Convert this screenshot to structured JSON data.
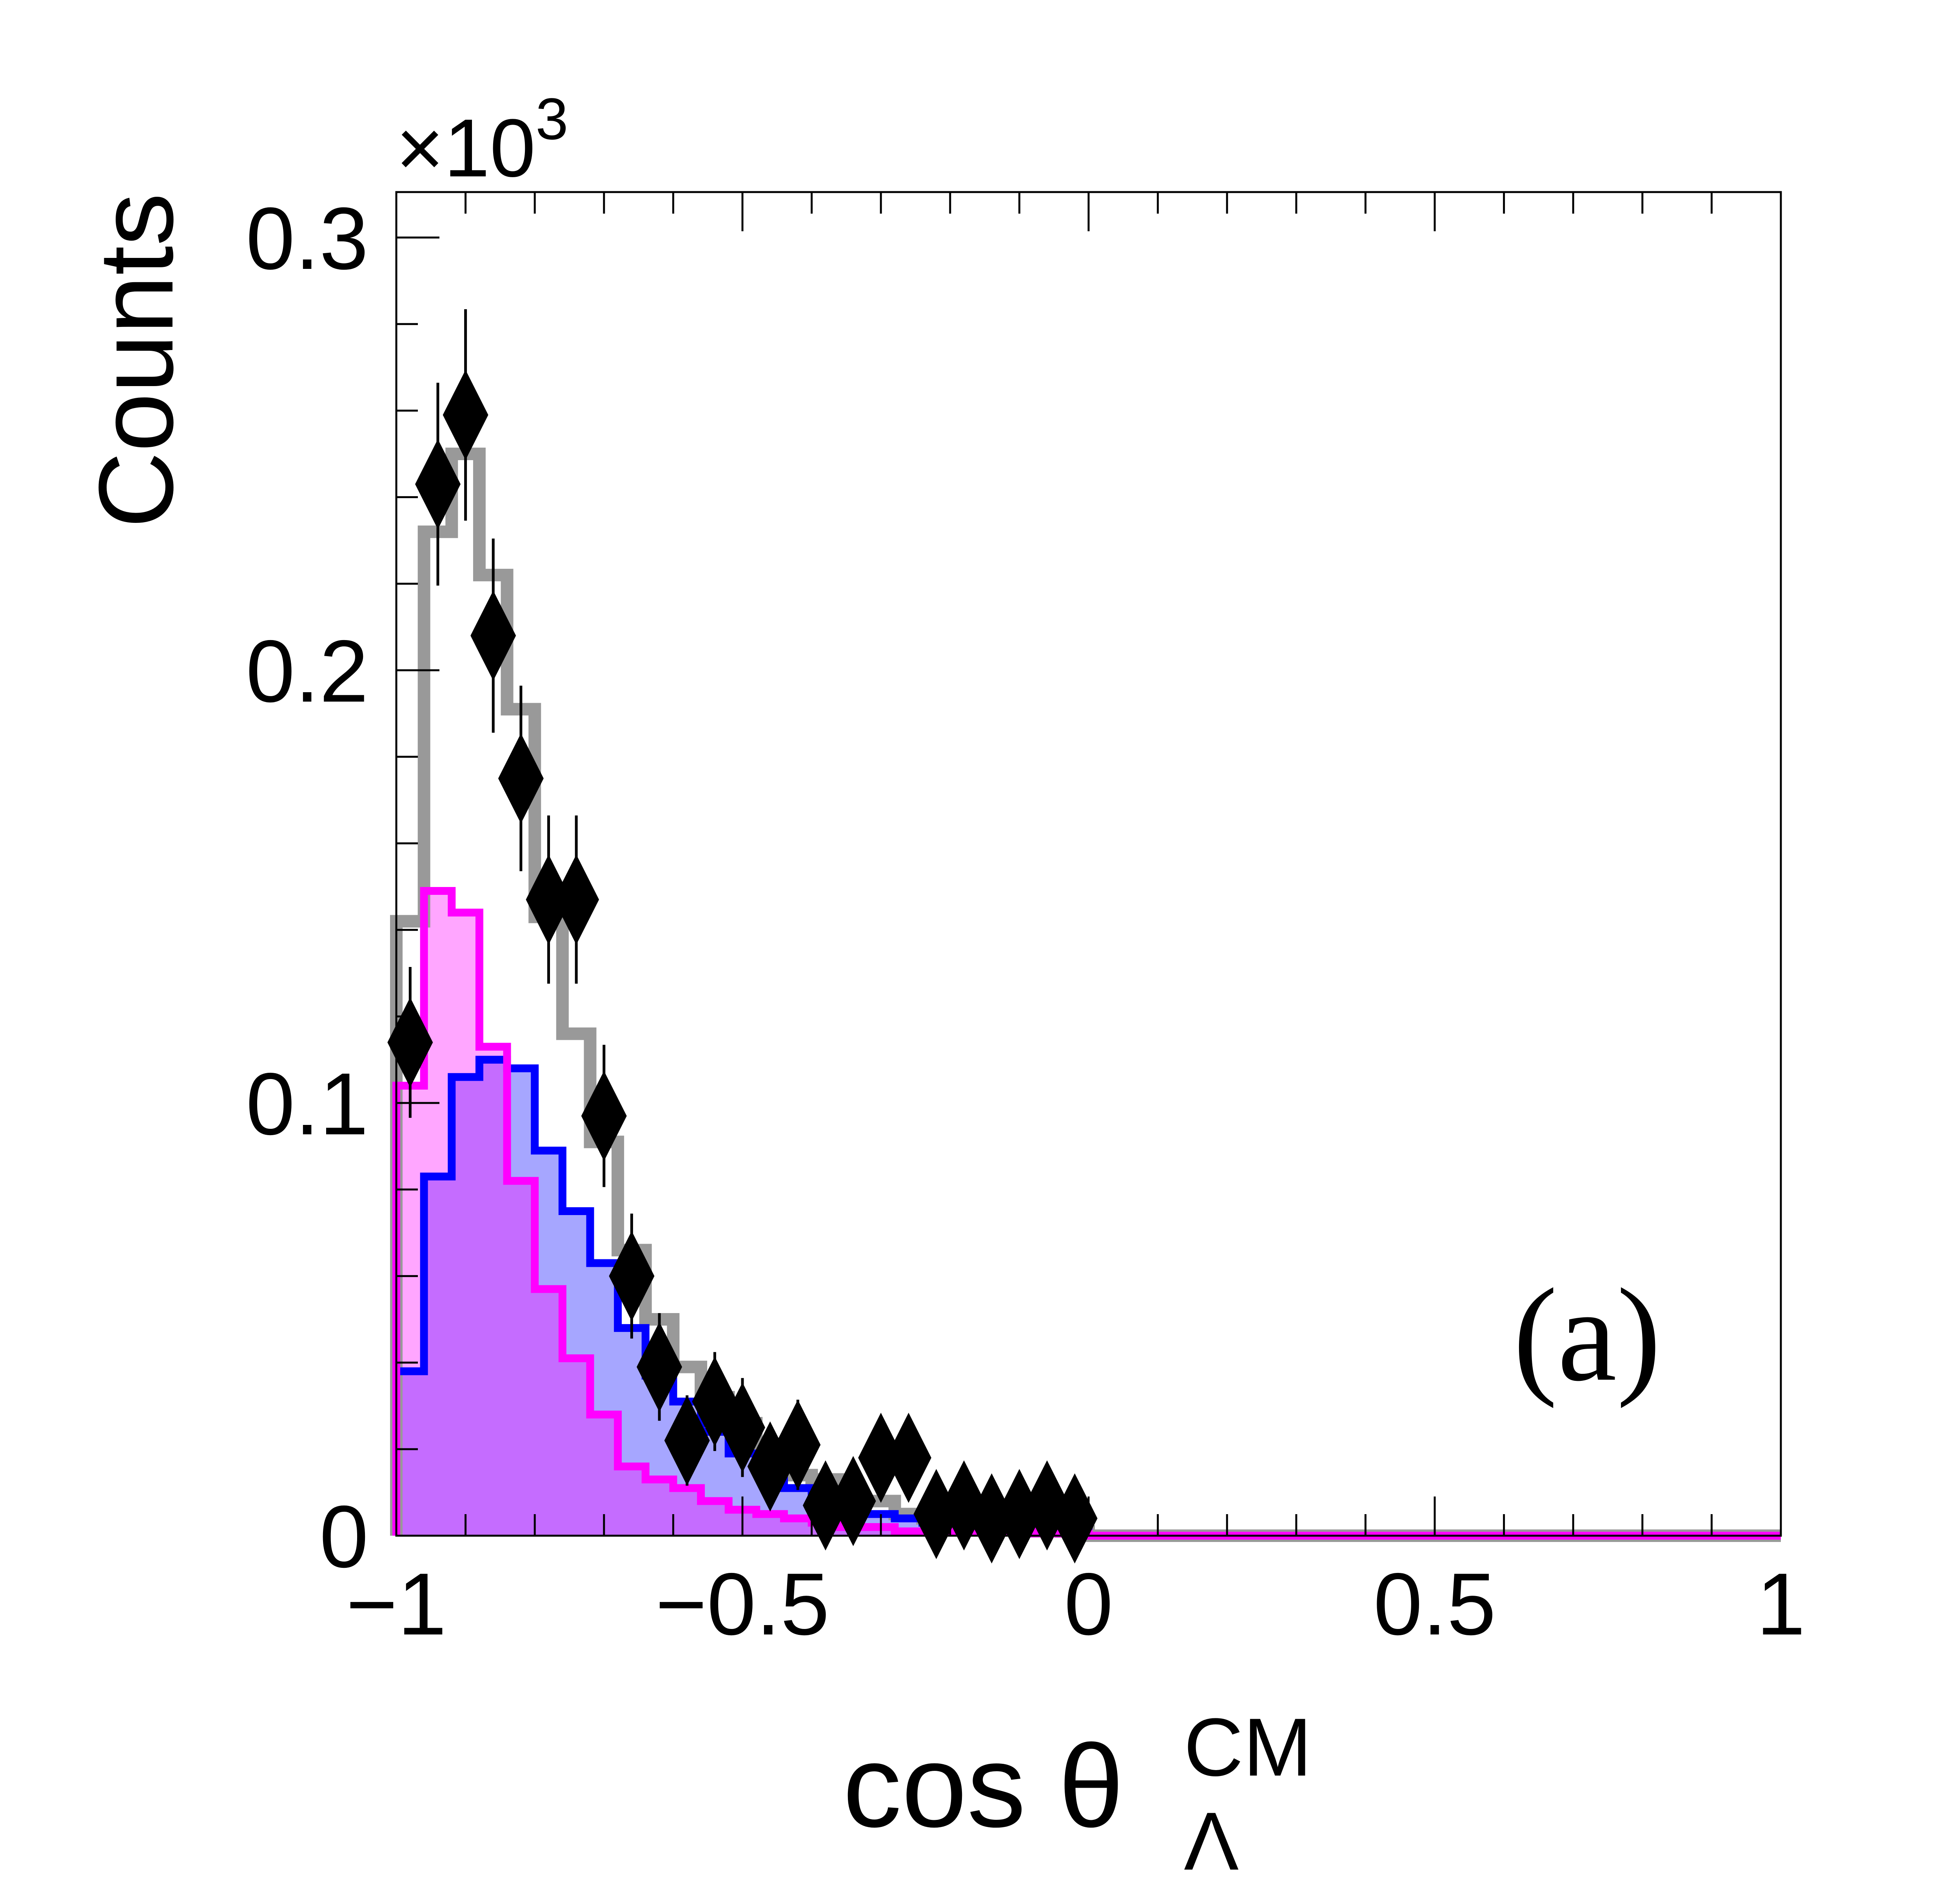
{
  "chart_data": {
    "type": "histogram",
    "panel_label": "(a)",
    "xlabel": {
      "base": "cos θ",
      "subscript": "Λ",
      "superscript": "CM"
    },
    "ylabel": "Counts",
    "y_multiplier": {
      "base": "×10",
      "exponent": "3"
    },
    "xlim": [
      -1,
      1
    ],
    "ylim": [
      0,
      0.31
    ],
    "x_ticks": [
      {
        "v": -1,
        "label": "−1"
      },
      {
        "v": -0.5,
        "label": "−0.5"
      },
      {
        "v": 0,
        "label": "0"
      },
      {
        "v": 0.5,
        "label": "0.5"
      },
      {
        "v": 1,
        "label": "1"
      }
    ],
    "y_ticks": [
      {
        "v": 0,
        "label": "0"
      },
      {
        "v": 0.1,
        "label": "0.1"
      },
      {
        "v": 0.2,
        "label": "0.2"
      },
      {
        "v": 0.3,
        "label": "0.3"
      }
    ],
    "bin_edges_start": -1,
    "bin_width": 0.04,
    "colors": {
      "total": "#999999",
      "blue": "#0000ff",
      "magenta": "#ff00ff",
      "data": "#000000"
    },
    "series": [
      {
        "name": "total",
        "style": "line",
        "values": [
          0.142,
          0.232,
          0.25,
          0.222,
          0.191,
          0.143,
          0.116,
          0.091,
          0.066,
          0.05,
          0.039,
          0.032,
          0.026,
          0.02,
          0.014,
          0.013,
          0.008,
          0.008,
          0.005,
          0.004,
          0.003,
          0.003,
          0.002,
          0.002,
          0.001
        ]
      },
      {
        "name": "blue",
        "style": "filled",
        "values": [
          0.038,
          0.083,
          0.106,
          0.11,
          0.108,
          0.089,
          0.075,
          0.063,
          0.048,
          0.037,
          0.031,
          0.024,
          0.019,
          0.015,
          0.011,
          0.008,
          0.006,
          0.005,
          0.004,
          0.003,
          0.003,
          0.002,
          0.002,
          0.001,
          0.001
        ]
      },
      {
        "name": "magenta",
        "style": "filled",
        "values": [
          0.104,
          0.149,
          0.144,
          0.113,
          0.082,
          0.057,
          0.041,
          0.028,
          0.016,
          0.013,
          0.011,
          0.008,
          0.006,
          0.005,
          0.004,
          0.003,
          0.002,
          0.002,
          0.001,
          0.001,
          0.001,
          0.001,
          0.001,
          0.0005,
          0.0005
        ]
      },
      {
        "name": "data",
        "style": "points",
        "values": [
          0.114,
          0.243,
          0.259,
          0.208,
          0.175,
          0.147,
          0.147,
          0.097,
          0.06,
          0.039,
          0.022,
          0.031,
          0.025,
          0.016,
          0.021,
          0.007,
          0.008,
          0.018,
          0.018,
          0.005,
          0.007,
          0.004,
          0.005,
          0.007,
          0.004
        ],
        "errors": [
          0.012,
          0.018,
          0.019,
          0.017,
          0.016,
          0.014,
          0.014,
          0.011,
          0.009,
          0.007,
          0.005,
          0.006,
          0.006,
          0.004,
          0.005,
          0.003,
          0.003,
          0.004,
          0.004,
          0.002,
          0.003,
          0.002,
          0.002,
          0.003,
          0.002
        ]
      }
    ]
  }
}
